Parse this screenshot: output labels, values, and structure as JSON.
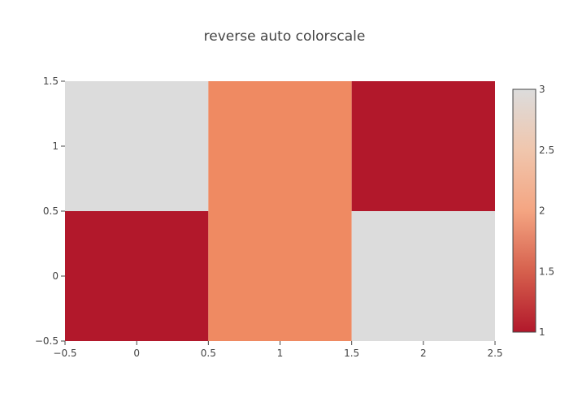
{
  "chart_data": {
    "type": "heatmap",
    "title": "reverse auto colorscale",
    "x": [
      0,
      1,
      2
    ],
    "y": [
      0,
      1
    ],
    "z": [
      [
        1,
        2,
        3
      ],
      [
        3,
        2,
        1
      ]
    ],
    "xlim": [
      -0.5,
      2.5
    ],
    "ylim": [
      -0.5,
      1.5
    ],
    "x_ticks": [
      "−0.5",
      "0",
      "0.5",
      "1",
      "1.5",
      "2",
      "2.5"
    ],
    "y_ticks": [
      "−0.5",
      "0",
      "0.5",
      "1",
      "1.5"
    ],
    "colorscale": {
      "min": 1,
      "max": 3,
      "reversed": true,
      "ticks": [
        "1",
        "1.5",
        "2",
        "2.5",
        "3"
      ],
      "stops": [
        "#b2182b",
        "#ef8a62",
        "#dcdcdc"
      ]
    },
    "grid": false,
    "legend": "colorbar-right"
  }
}
